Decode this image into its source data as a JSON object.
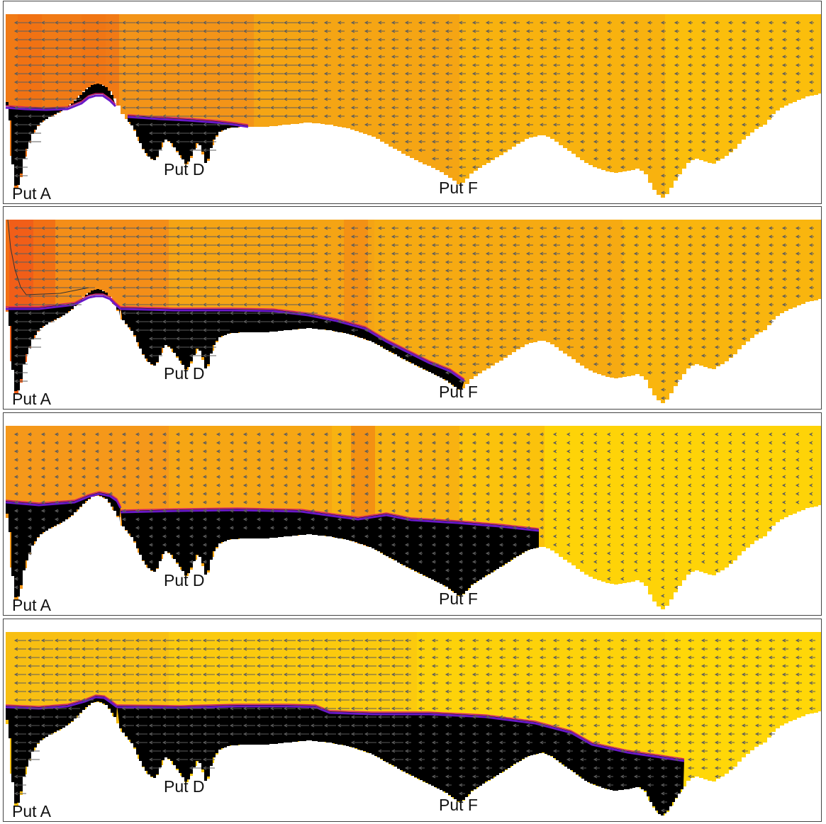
{
  "colors": {
    "warm": "#f39a10",
    "hot": "#f06c12",
    "cool": "#ffd308",
    "dense": "#000000",
    "interface_purple": "#6a18c8",
    "interface_red": "#d42070",
    "arrow": "#5c5c5c"
  },
  "icons": {
    "flow_arrow": "arrow-left-icon"
  },
  "panels": [
    {
      "labels": {
        "put_a": "Put A",
        "put_d": "Put D",
        "put_f": "Put F"
      },
      "dense_extent": 0.29,
      "surface_color": "warm"
    },
    {
      "labels": {
        "put_a": "Put A",
        "put_d": "Put D",
        "put_f": "Put F"
      },
      "dense_extent": 0.56,
      "surface_color": "warm"
    },
    {
      "labels": {
        "put_a": "Put A",
        "put_d": "Put D",
        "put_f": "Put F"
      },
      "dense_extent": 0.66,
      "surface_color": "warm-to-cool"
    },
    {
      "labels": {
        "put_a": "Put A",
        "put_d": "Put D",
        "put_f": "Put F"
      },
      "dense_extent": 0.83,
      "surface_color": "cool"
    }
  ]
}
